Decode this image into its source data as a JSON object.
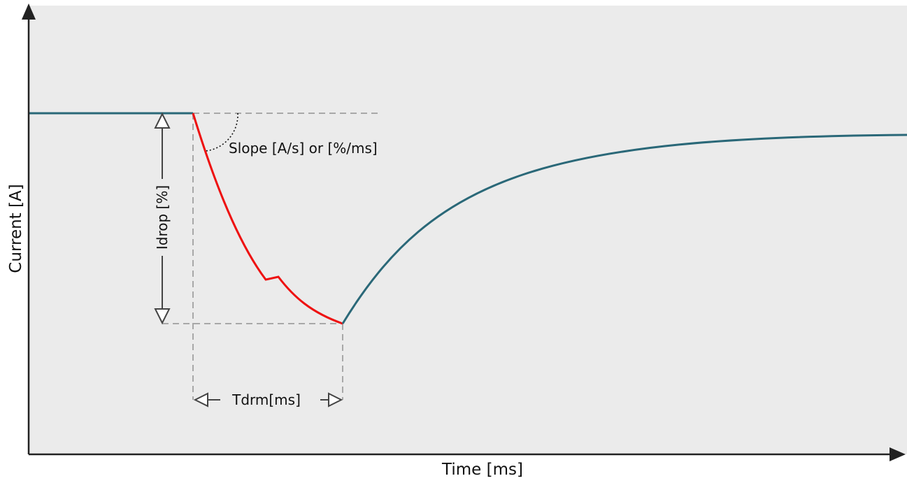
{
  "diagram": {
    "axes": {
      "x_label": "Time [ms]",
      "y_label": "Current [A]"
    },
    "annotations": {
      "slope": "Slope [A/s] or [%/ms]",
      "idrop": "Idrop [%]",
      "tdrm": "Tdrm[ms]"
    },
    "colors": {
      "background": "#ebebeb",
      "steady_current": "#2a6878",
      "drop_curve": "#ee1111",
      "guides": "#a8a8a8",
      "axes": "#222222",
      "arrows": "#444444"
    }
  }
}
